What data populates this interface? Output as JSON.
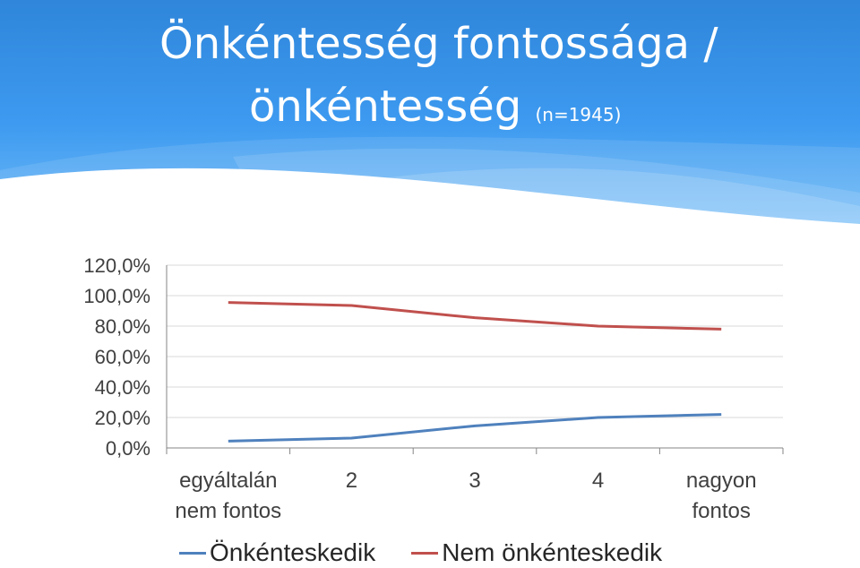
{
  "slide": {
    "title_line1": "Önkéntesség fontossága /",
    "title_line2": "önkéntesség",
    "title_n": "(n=1945)"
  },
  "colors": {
    "header": "#3a93e8",
    "series_onkenteskedik": "#4f81bd",
    "series_nem": "#c0504d"
  },
  "chart_data": {
    "type": "line",
    "categories": [
      "egyáltalán nem fontos",
      "2",
      "3",
      "4",
      "nagyon fontos"
    ],
    "category_lines": [
      [
        "egyáltalán",
        "nem fontos"
      ],
      [
        "2"
      ],
      [
        "3"
      ],
      [
        "4"
      ],
      [
        "nagyon",
        "fontos"
      ]
    ],
    "y_ticks": [
      "0,0%",
      "20,0%",
      "40,0%",
      "60,0%",
      "80,0%",
      "100,0%",
      "120,0%"
    ],
    "ylim": [
      0,
      120
    ],
    "grid": true,
    "legend_position": "bottom",
    "series": [
      {
        "name": "Önkénteskedik",
        "values": [
          4.5,
          6.5,
          14.5,
          20.0,
          22.0
        ]
      },
      {
        "name": "Nem önkénteskedik",
        "values": [
          95.5,
          93.5,
          85.5,
          80.0,
          78.0
        ]
      }
    ]
  }
}
